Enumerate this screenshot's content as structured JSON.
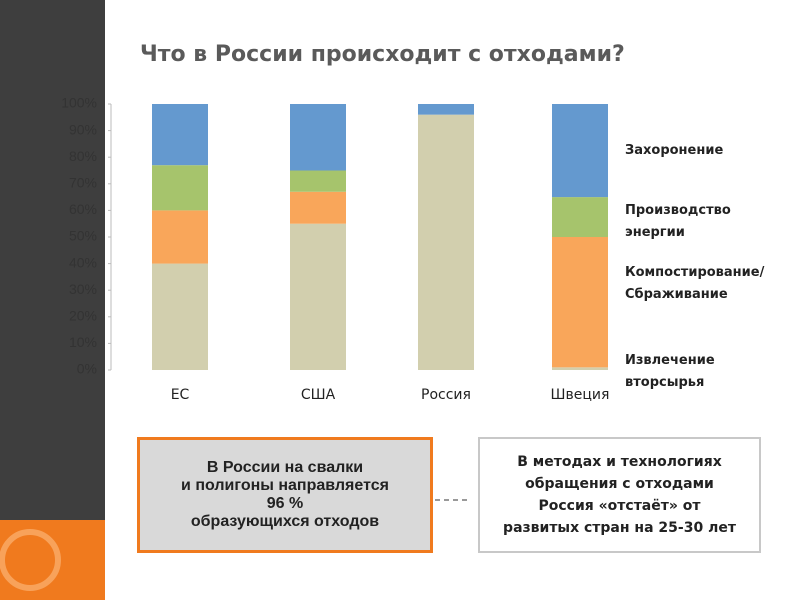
{
  "chart_data": {
    "type": "stacked_bar",
    "title": "Что в России происходит с отходами?",
    "categories": [
      "ЕС",
      "США",
      "Россия",
      "Швеция"
    ],
    "series": [
      {
        "name": "Захоронение",
        "color": "#d2cfae",
        "values": [
          40,
          55,
          96,
          1
        ]
      },
      {
        "name": "Производство\nэнергии",
        "color": "#f9a65a",
        "values": [
          20,
          12,
          0,
          49
        ]
      },
      {
        "name": "Компостирование/\nСбраживание",
        "color": "#a6c46c",
        "values": [
          17,
          8,
          0,
          15
        ]
      },
      {
        "name": "Извлечение\nвторсырья",
        "color": "#6499cf",
        "values": [
          23,
          25,
          4,
          35
        ]
      }
    ],
    "ylim": [
      0,
      100
    ],
    "yticks": [
      {
        "value": 0,
        "label": "0%"
      },
      {
        "value": 10,
        "label": "10%"
      },
      {
        "value": 20,
        "label": "20%"
      },
      {
        "value": 30,
        "label": "30%"
      },
      {
        "value": 40,
        "label": "40%"
      },
      {
        "value": 50,
        "label": "50%"
      },
      {
        "value": 60,
        "label": "60%"
      },
      {
        "value": 70,
        "label": "70%"
      },
      {
        "value": 80,
        "label": "80%"
      },
      {
        "value": 90,
        "label": "90%"
      },
      {
        "value": 100,
        "label": "100%"
      }
    ]
  },
  "callouts": [
    {
      "lines": [
        "В России на свалки",
        "и полигоны направляется",
        "96 %",
        "образующихся отходов"
      ]
    },
    {
      "lines": [
        "В методах и технологиях",
        "обращения с отходами",
        "Россия «отстаёт» от",
        "развитых стран на 25-30 лет"
      ]
    }
  ]
}
